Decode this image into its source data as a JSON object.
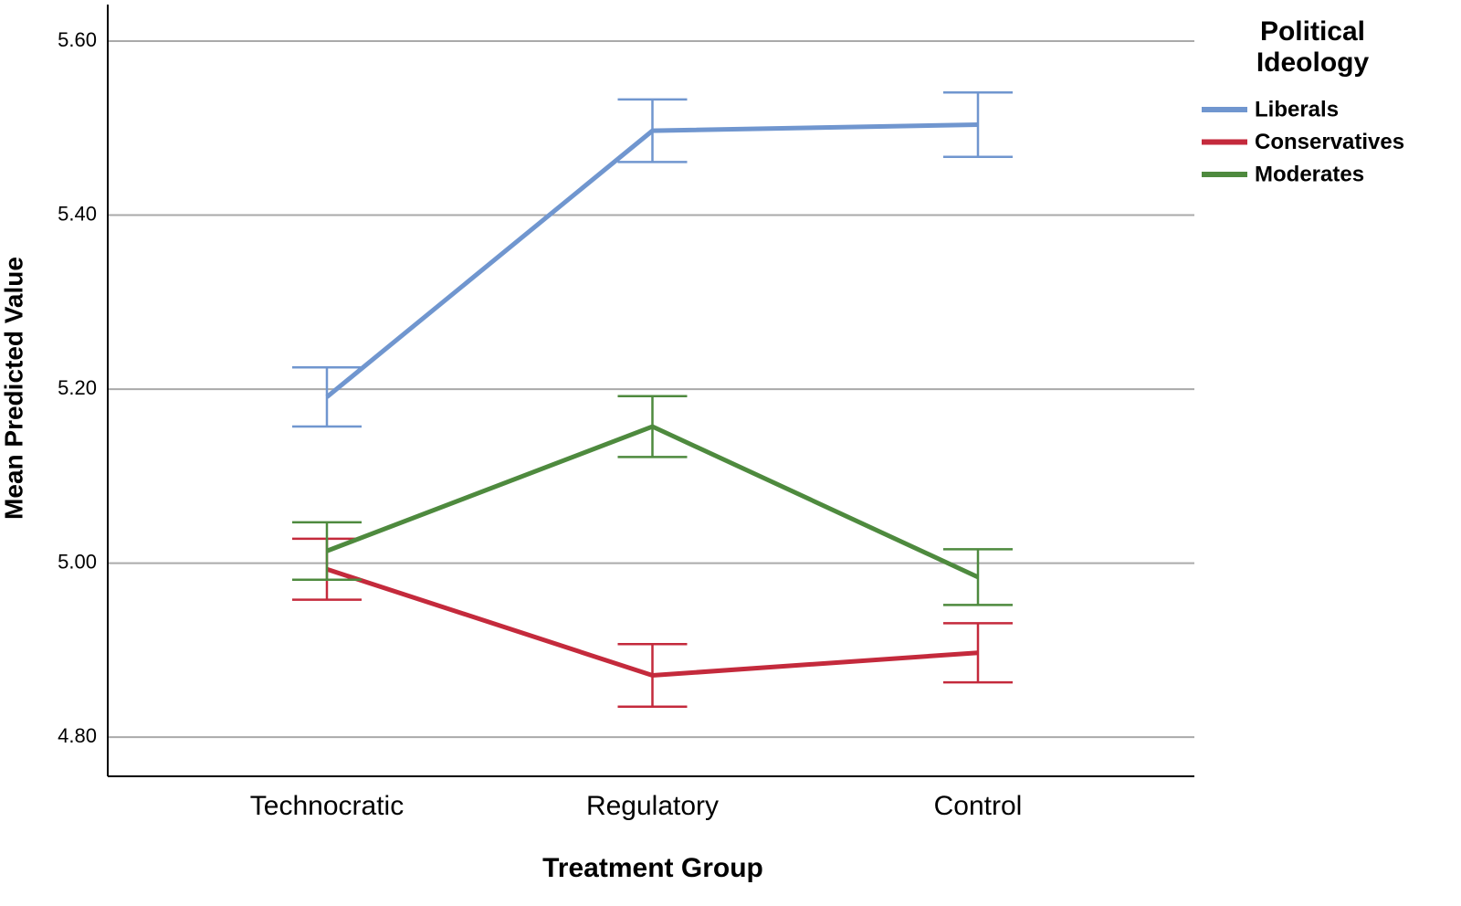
{
  "chart_data": {
    "type": "line",
    "y_label": "Mean Predicted Value",
    "x_label": "Treatment Group",
    "legend_title": "Political Ideology",
    "legend_position": "right",
    "categories": [
      "Technocratic",
      "Regulatory",
      "Control"
    ],
    "series": [
      {
        "name": "Liberals",
        "color": "#7096cf",
        "values": [
          5.191,
          5.497,
          5.504
        ],
        "errors": [
          0.034,
          0.036,
          0.037
        ]
      },
      {
        "name": "Conservatives",
        "color": "#c42a3c",
        "values": [
          4.993,
          4.871,
          4.897
        ],
        "errors": [
          0.035,
          0.036,
          0.034
        ]
      },
      {
        "name": "Moderates",
        "color": "#4e8a3e",
        "values": [
          5.014,
          5.157,
          4.984
        ],
        "errors": [
          0.033,
          0.035,
          0.032
        ]
      }
    ],
    "ylim": [
      4.755,
      5.642
    ],
    "yticks": [
      {
        "value": 4.8,
        "label": "4.80"
      },
      {
        "value": 5.0,
        "label": "5.00"
      },
      {
        "value": 5.2,
        "label": "5.20"
      },
      {
        "value": 5.4,
        "label": "5.40"
      },
      {
        "value": 5.6,
        "label": "5.60"
      }
    ],
    "grid": true
  }
}
